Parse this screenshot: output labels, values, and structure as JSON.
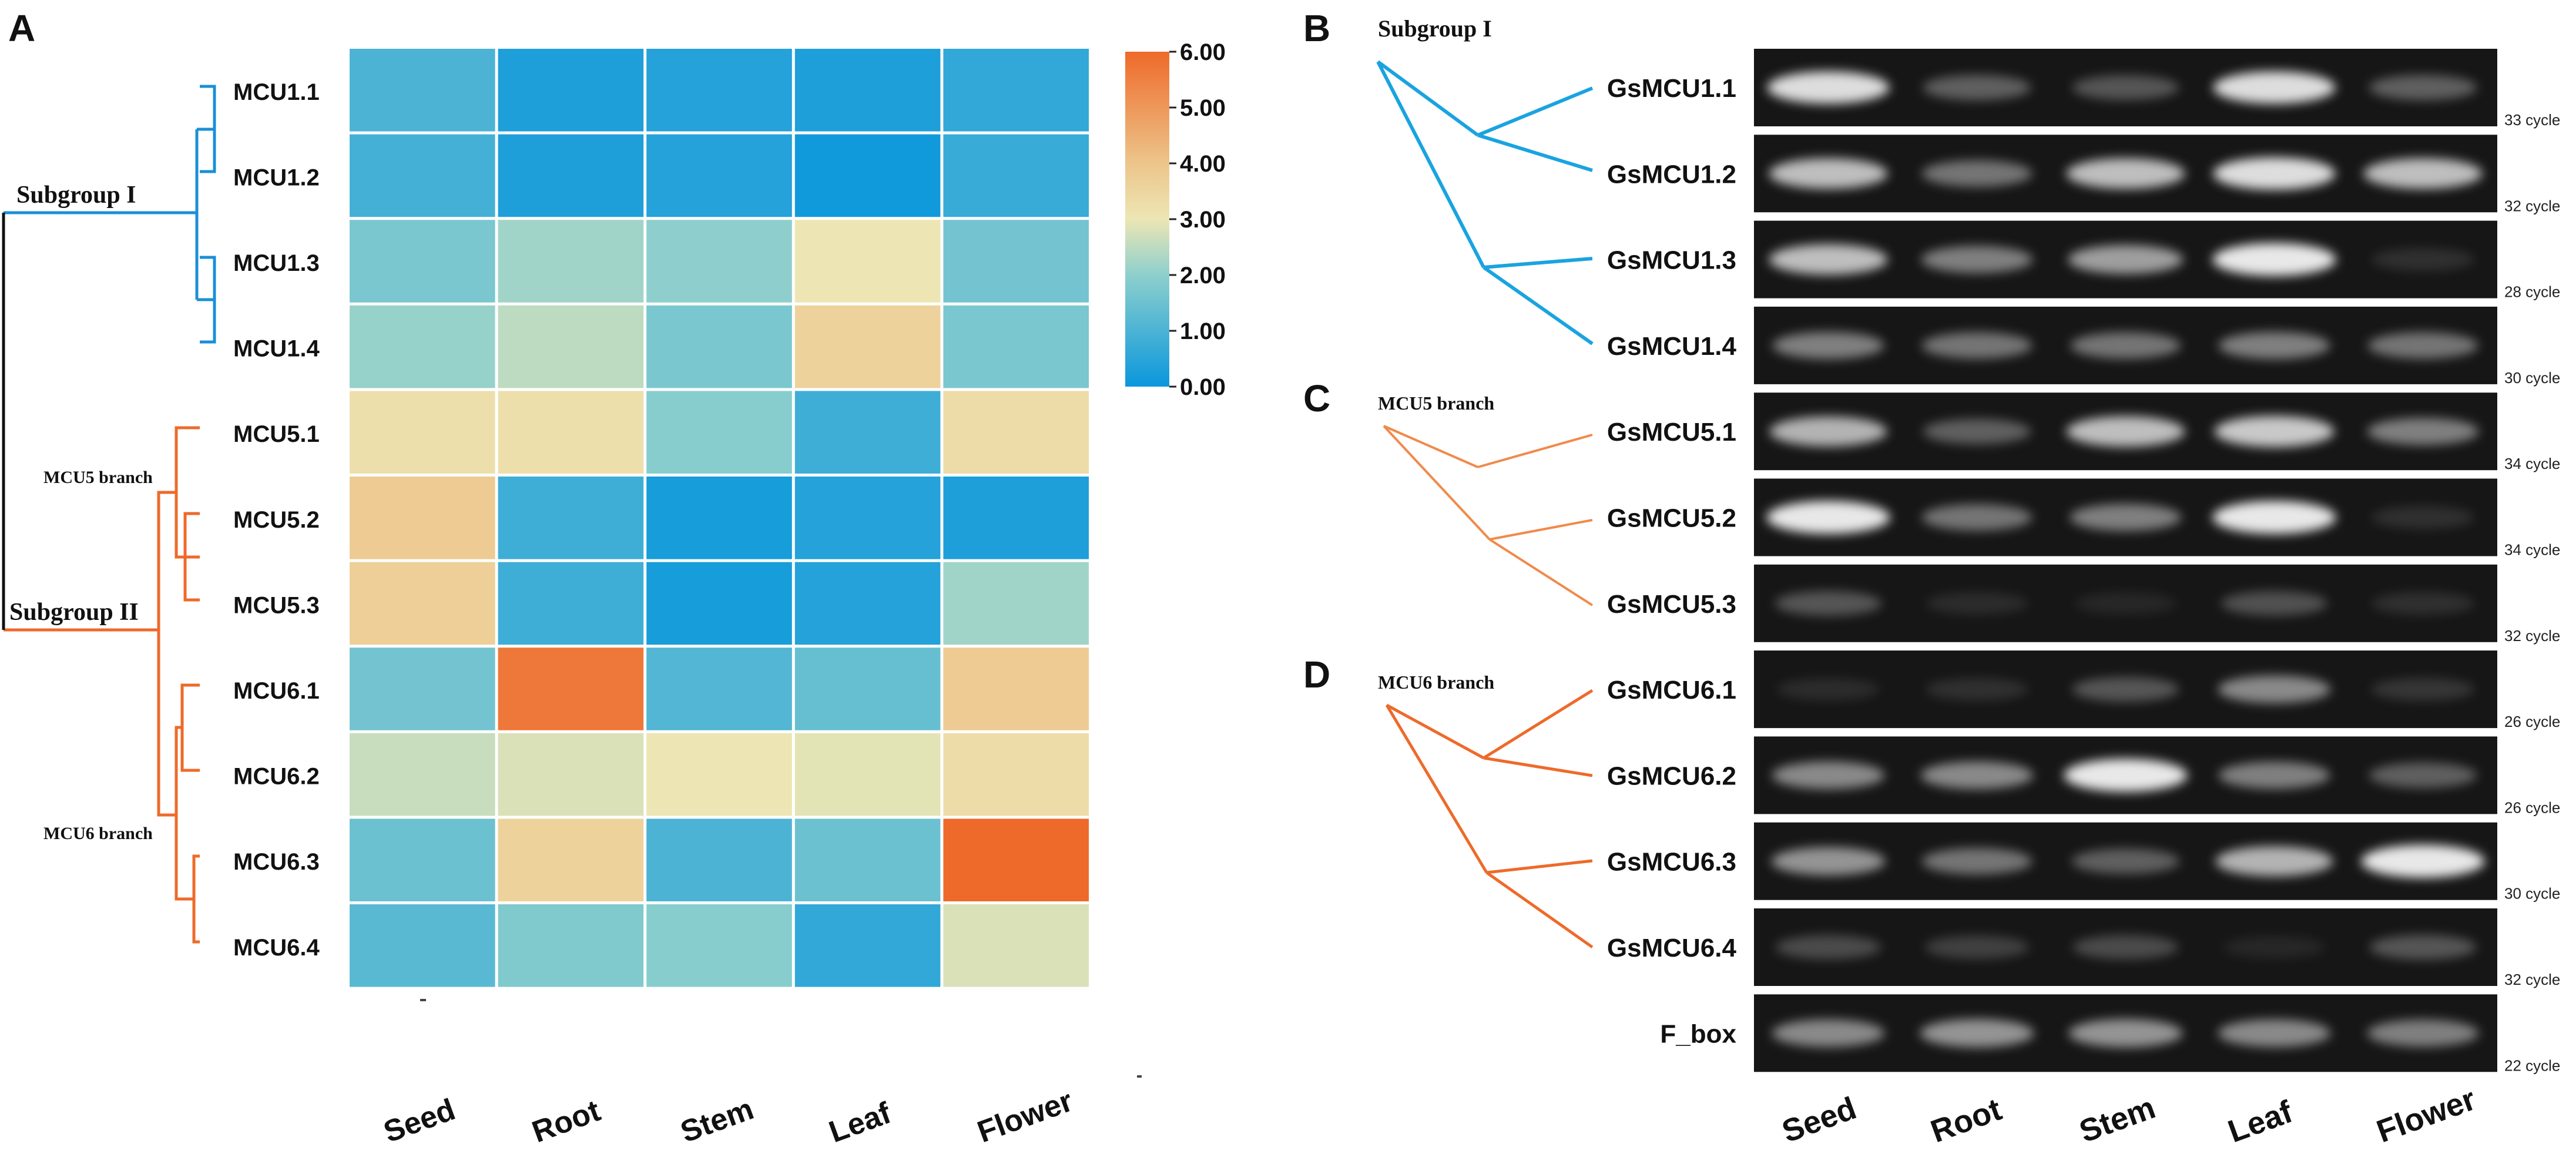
{
  "panel_labels": [
    "A",
    "B",
    "C",
    "D"
  ],
  "colors": {
    "subgroup1": "#1a8fd8",
    "subgroup2": "#ee6a2a",
    "trunk": "#111111",
    "gel_bg": "#161616",
    "band": "#e8e8e8"
  },
  "colorscale": [
    {
      "stop": 0.0,
      "color": "#0a97dc"
    },
    {
      "stop": 0.33,
      "color": "#8ccfcd"
    },
    {
      "stop": 0.5,
      "color": "#ede6b4"
    },
    {
      "stop": 0.67,
      "color": "#edc48a"
    },
    {
      "stop": 1.0,
      "color": "#ee6a2a"
    }
  ],
  "chart_data": [
    {
      "type": "heatmap",
      "panel": "A",
      "rows": [
        "MCU1.1",
        "MCU1.2",
        "MCU1.3",
        "MCU1.4",
        "MCU5.1",
        "MCU5.2",
        "MCU5.3",
        "MCU6.1",
        "MCU6.2",
        "MCU6.3",
        "MCU6.4"
      ],
      "columns": [
        "Seed",
        "Root",
        "Stem",
        "Leaf",
        "Flower"
      ],
      "values": [
        [
          1.0,
          0.3,
          0.4,
          0.3,
          0.6
        ],
        [
          0.9,
          0.3,
          0.4,
          0.1,
          0.7
        ],
        [
          1.7,
          2.2,
          2.0,
          3.0,
          1.6
        ],
        [
          2.1,
          2.5,
          1.7,
          3.6,
          1.7
        ],
        [
          3.2,
          3.2,
          1.9,
          0.8,
          3.3
        ],
        [
          3.8,
          0.8,
          0.2,
          0.4,
          0.3
        ],
        [
          3.7,
          0.8,
          0.2,
          0.4,
          2.2
        ],
        [
          1.6,
          5.7,
          1.1,
          1.4,
          3.8
        ],
        [
          2.6,
          2.8,
          3.0,
          2.9,
          3.3
        ],
        [
          1.5,
          3.6,
          1.0,
          1.5,
          6.0
        ],
        [
          1.2,
          1.8,
          1.9,
          0.6,
          2.8
        ]
      ],
      "colorbar": {
        "min": 0.0,
        "max": 6.0,
        "ticks": [
          "6.00",
          "5.00",
          "4.00",
          "3.00",
          "2.00",
          "1.00",
          "0.00"
        ]
      },
      "tree": {
        "subgroup1_label": "Subgroup I",
        "subgroup2_label": "Subgroup II",
        "mcu5_label": "MCU5 branch",
        "mcu6_label": "MCU6 branch"
      }
    },
    {
      "type": "table",
      "panel": "B–D",
      "description_kind": "RT-PCR gel",
      "columns": [
        "Seed",
        "Root",
        "Stem",
        "Leaf",
        "Flower"
      ],
      "branch_labels": {
        "B": "Subgroup I",
        "C": "MCU5 branch",
        "D": "MCU6 branch"
      },
      "lanes": [
        {
          "gene": "GsMCU1.1",
          "cycles": "33 cycle",
          "intensity": [
            0.95,
            0.35,
            0.3,
            0.95,
            0.35
          ]
        },
        {
          "gene": "GsMCU1.2",
          "cycles": "32 cycle",
          "intensity": [
            0.8,
            0.45,
            0.8,
            0.95,
            0.8
          ]
        },
        {
          "gene": "GsMCU1.3",
          "cycles": "28 cycle",
          "intensity": [
            0.8,
            0.5,
            0.65,
            1.0,
            0.12
          ]
        },
        {
          "gene": "GsMCU1.4",
          "cycles": "30 cycle",
          "intensity": [
            0.5,
            0.45,
            0.45,
            0.5,
            0.45
          ]
        },
        {
          "gene": "GsMCU5.1",
          "cycles": "34 cycle",
          "intensity": [
            0.75,
            0.35,
            0.8,
            0.85,
            0.5
          ]
        },
        {
          "gene": "GsMCU5.2",
          "cycles": "34 cycle",
          "intensity": [
            1.0,
            0.45,
            0.5,
            1.0,
            0.12
          ]
        },
        {
          "gene": "GsMCU5.3",
          "cycles": "32 cycle",
          "intensity": [
            0.3,
            0.1,
            0.08,
            0.28,
            0.12
          ]
        },
        {
          "gene": "GsMCU6.1",
          "cycles": "26 cycle",
          "intensity": [
            0.1,
            0.12,
            0.3,
            0.55,
            0.15
          ]
        },
        {
          "gene": "GsMCU6.2",
          "cycles": "26 cycle",
          "intensity": [
            0.55,
            0.55,
            1.0,
            0.5,
            0.35
          ]
        },
        {
          "gene": "GsMCU6.3",
          "cycles": "30 cycle",
          "intensity": [
            0.6,
            0.45,
            0.35,
            0.75,
            1.0
          ]
        },
        {
          "gene": "GsMCU6.4",
          "cycles": "32 cycle",
          "intensity": [
            0.25,
            0.2,
            0.25,
            0.08,
            0.3
          ]
        },
        {
          "gene": "F_box",
          "cycles": "22 cycle",
          "intensity": [
            0.55,
            0.6,
            0.6,
            0.55,
            0.5
          ]
        }
      ]
    }
  ]
}
